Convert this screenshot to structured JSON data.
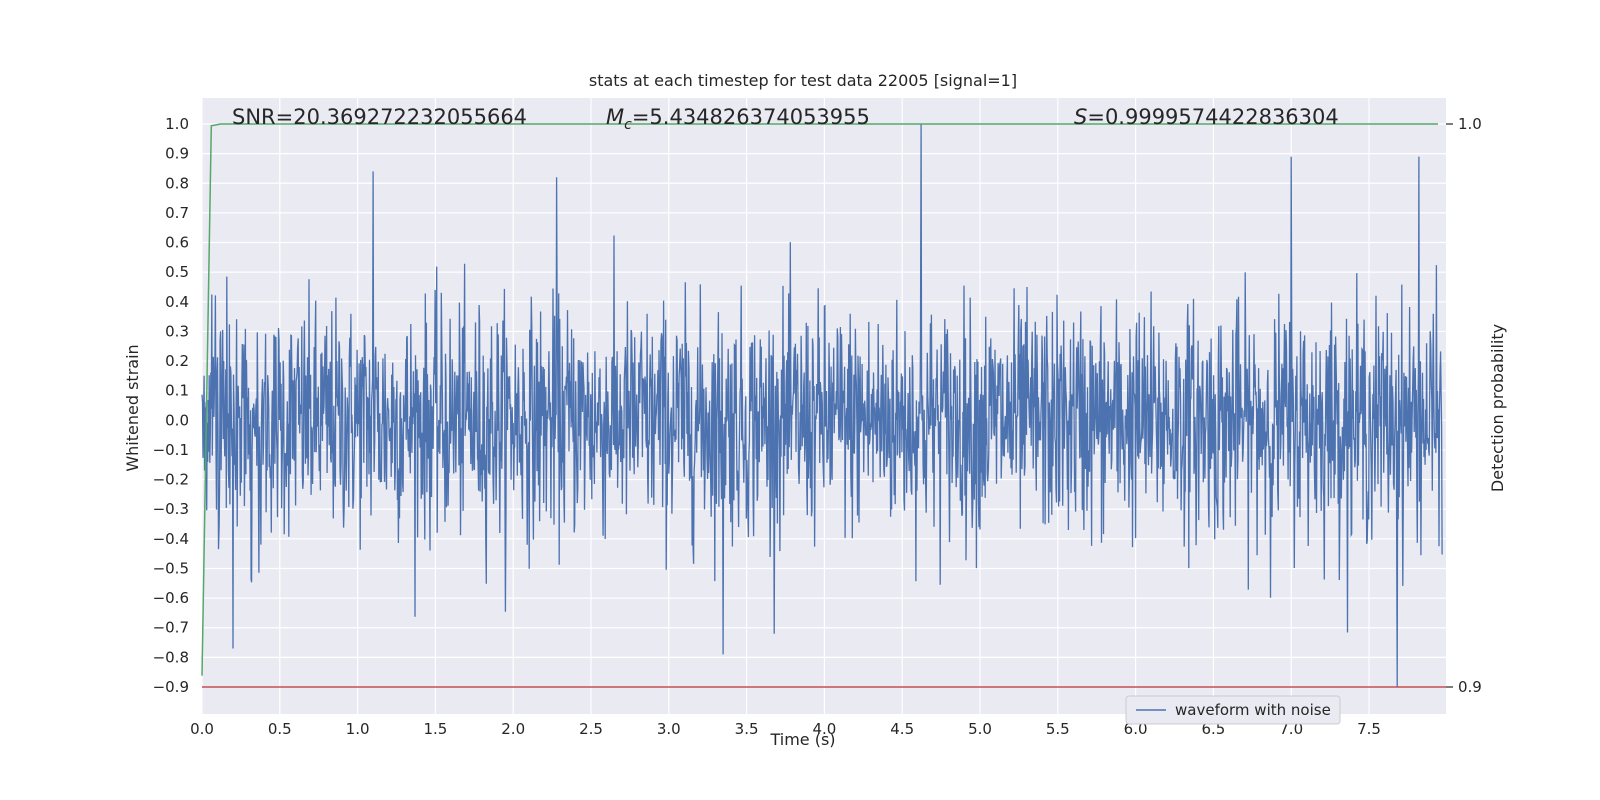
{
  "chart_data": {
    "type": "line",
    "title": "stats at each timestep for test data 22005 [signal=1]",
    "xlabel": "Time (s)",
    "ylabel": "Whitened strain",
    "y2label": "Detection probability",
    "xlim": [
      0.0,
      8.0
    ],
    "ylim": [
      -0.9,
      1.0
    ],
    "y2lim": [
      0.9,
      1.0
    ],
    "x_ticks": [
      "0.0",
      "0.5",
      "1.0",
      "1.5",
      "2.0",
      "2.5",
      "3.0",
      "3.5",
      "4.0",
      "4.5",
      "5.0",
      "5.5",
      "6.0",
      "6.5",
      "7.0",
      "7.5"
    ],
    "y_ticks": [
      "1.0",
      "0.9",
      "0.8",
      "0.7",
      "0.6",
      "0.5",
      "0.4",
      "0.3",
      "0.2",
      "0.1",
      "0.0",
      "−0.1",
      "−0.2",
      "−0.3",
      "−0.4",
      "−0.5",
      "−0.6",
      "−0.7",
      "−0.8",
      "−0.9"
    ],
    "y2_ticks": [
      "1.0",
      "0.9"
    ],
    "grid": true,
    "legend_position": "bottom-right",
    "annotations": {
      "snr": "SNR=20.369272232055664",
      "mc_symbol": "M",
      "mc_sub": "c",
      "mc_value": "=5.434826374053955",
      "s_symbol": "S",
      "s_value": "=0.9999574422836304"
    },
    "series": [
      {
        "name": "waveform with noise",
        "color": "#4c72b0",
        "kind": "noise",
        "x_range": [
          0.0,
          8.0
        ],
        "typical_range": [
          -0.4,
          0.4
        ],
        "peaks": [
          {
            "x": 4.62,
            "y": 1.0
          },
          {
            "x": 1.1,
            "y": 0.84
          },
          {
            "x": 2.28,
            "y": 0.82
          },
          {
            "x": 7.0,
            "y": 0.89
          },
          {
            "x": 7.82,
            "y": 0.89
          },
          {
            "x": 7.68,
            "y": -0.9
          },
          {
            "x": 3.35,
            "y": -0.79
          },
          {
            "x": 0.2,
            "y": -0.77
          }
        ]
      },
      {
        "color": "#55a868",
        "axis": "y2",
        "x": [
          0.0,
          0.06,
          0.12,
          0.3,
          8.0
        ],
        "y": [
          0.902,
          0.9997,
          1.0,
          1.0,
          1.0
        ]
      },
      {
        "color": "#c44e52",
        "axis": "y2",
        "x": [
          0.0,
          8.0
        ],
        "y": [
          0.9,
          0.9
        ]
      }
    ]
  }
}
